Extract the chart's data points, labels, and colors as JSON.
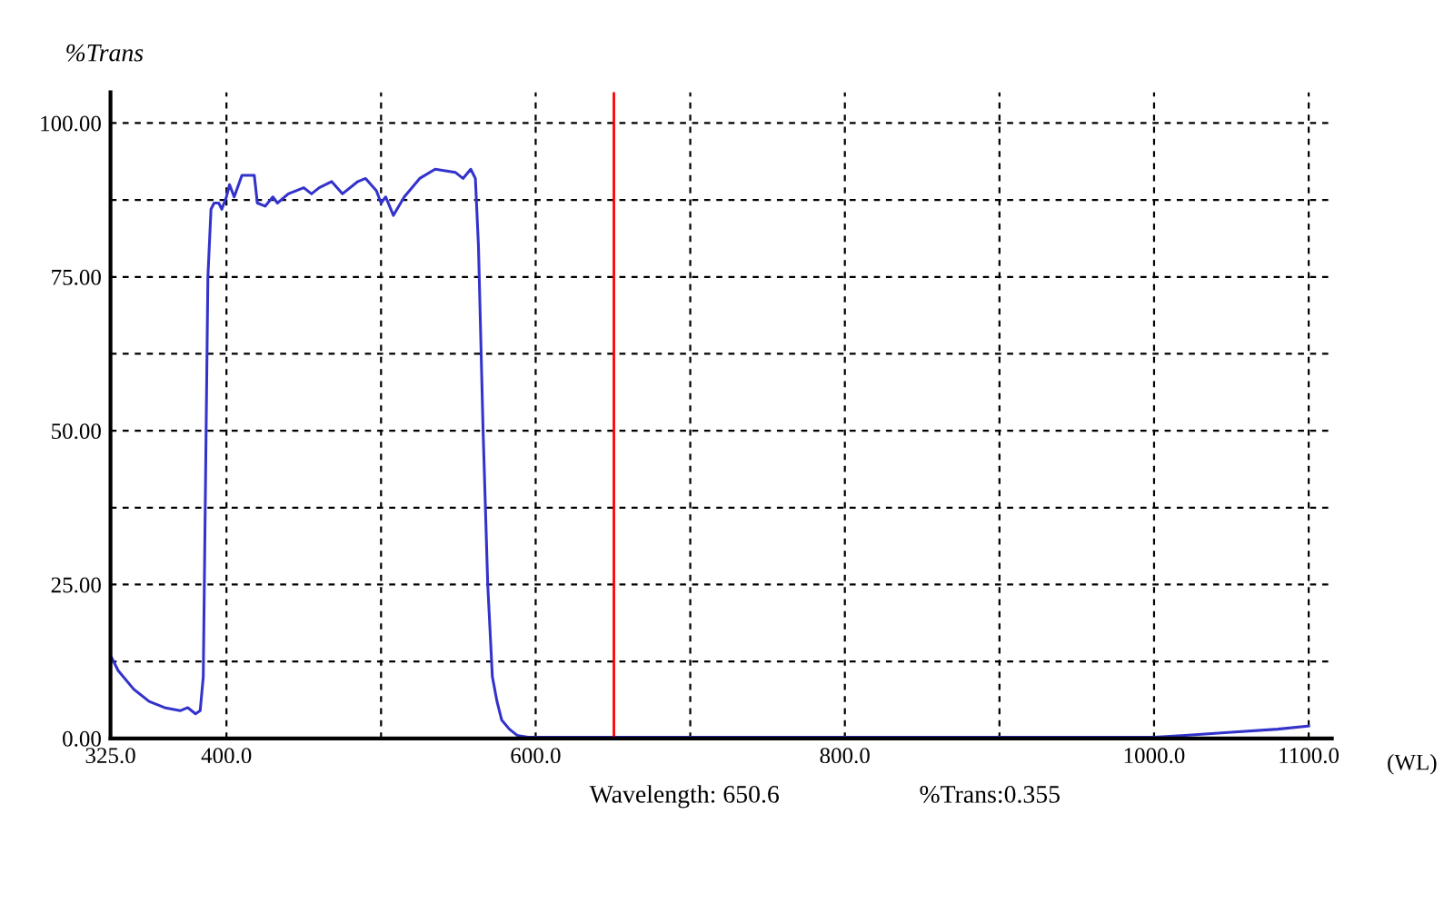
{
  "chart_data": {
    "type": "line",
    "ylabel": "%Trans",
    "xlabel": "(WL)",
    "x": [
      325,
      330,
      340,
      350,
      360,
      370,
      375,
      380,
      383,
      385,
      388,
      390,
      392,
      395,
      397,
      400,
      402,
      405,
      410,
      418,
      420,
      425,
      430,
      433,
      440,
      450,
      455,
      460,
      468,
      475,
      485,
      490,
      497,
      500,
      503,
      508,
      515,
      525,
      535,
      548,
      553,
      558,
      561,
      563,
      566,
      569,
      572,
      575,
      578,
      583,
      588,
      595,
      600,
      650,
      700,
      800,
      900,
      1000,
      1020,
      1050,
      1080,
      1100
    ],
    "series": [
      {
        "color": "#3333cc",
        "values": [
          13.5,
          11,
          8,
          6,
          5,
          4.5,
          5,
          4,
          4.5,
          10,
          75,
          86,
          87,
          87,
          86,
          88,
          90,
          88,
          91.5,
          91.5,
          87,
          86.5,
          88,
          87,
          88.5,
          89.5,
          88.5,
          89.5,
          90.5,
          88.5,
          90.5,
          91,
          89,
          87,
          88,
          85,
          88,
          91,
          92.5,
          92,
          91,
          92.5,
          91,
          80,
          50,
          25,
          10,
          6,
          3,
          1.5,
          0.5,
          0.2,
          0.2,
          0.2,
          0.2,
          0.2,
          0.2,
          0.2,
          0.5,
          1,
          1.5,
          2
        ]
      }
    ],
    "xlim": [
      325,
      1115
    ],
    "ylim": [
      0,
      105
    ],
    "xticks": [
      {
        "value": 325,
        "label": "325.0"
      },
      {
        "value": 400,
        "label": "400.0"
      },
      {
        "value": 500,
        "label": null
      },
      {
        "value": 600,
        "label": "600.0"
      },
      {
        "value": 700,
        "label": null
      },
      {
        "value": 800,
        "label": "800.0"
      },
      {
        "value": 900,
        "label": null
      },
      {
        "value": 1000,
        "label": "1000.0"
      },
      {
        "value": 1100,
        "label": "1100.0"
      }
    ],
    "yticks": [
      {
        "value": 0,
        "label": "0.00"
      },
      {
        "value": 12.5,
        "label": null
      },
      {
        "value": 25,
        "label": "25.00"
      },
      {
        "value": 37.5,
        "label": null
      },
      {
        "value": 50,
        "label": "50.00"
      },
      {
        "value": 62.5,
        "label": null
      },
      {
        "value": 75,
        "label": "75.00"
      },
      {
        "value": 87.5,
        "label": null
      },
      {
        "value": 100,
        "label": "100.00"
      }
    ],
    "grid": true,
    "line_style": "solid",
    "marker": "none",
    "legend": false,
    "ref_lines": [
      {
        "axis": "x",
        "value": 650.6,
        "color": "#ff0000",
        "line_style": "solid"
      }
    ],
    "annotations": [
      "Wavelength: 650.6",
      "%Trans:0.355"
    ]
  }
}
